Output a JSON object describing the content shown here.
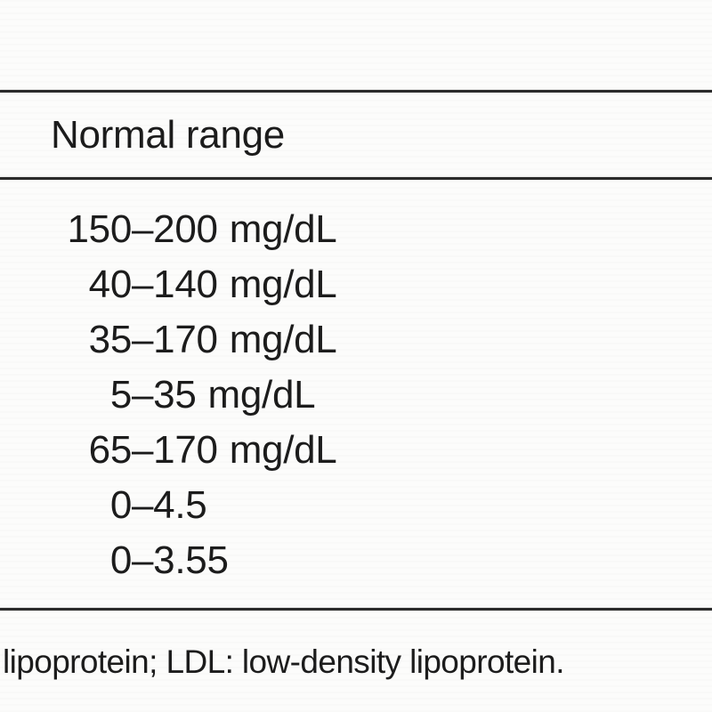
{
  "page": {
    "background": "#fcfcfb",
    "text_color": "#1c1c1c",
    "rule_color": "#2b2b2b"
  },
  "table": {
    "header": "Normal range",
    "dash": "–",
    "rows": [
      {
        "low": "150",
        "high": "200",
        "unit": "mg/dL"
      },
      {
        "low": "40",
        "high": "140",
        "unit": "mg/dL"
      },
      {
        "low": "35",
        "high": "170",
        "unit": "mg/dL"
      },
      {
        "low": "5",
        "high": "35",
        "unit": "mg/dL"
      },
      {
        "low": "65",
        "high": "170",
        "unit": "mg/dL"
      },
      {
        "low": "0",
        "high": "4.5",
        "unit": ""
      },
      {
        "low": "0",
        "high": "3.55",
        "unit": ""
      }
    ],
    "footnote": "lipoprotein; LDL: low-density lipoprotein."
  }
}
